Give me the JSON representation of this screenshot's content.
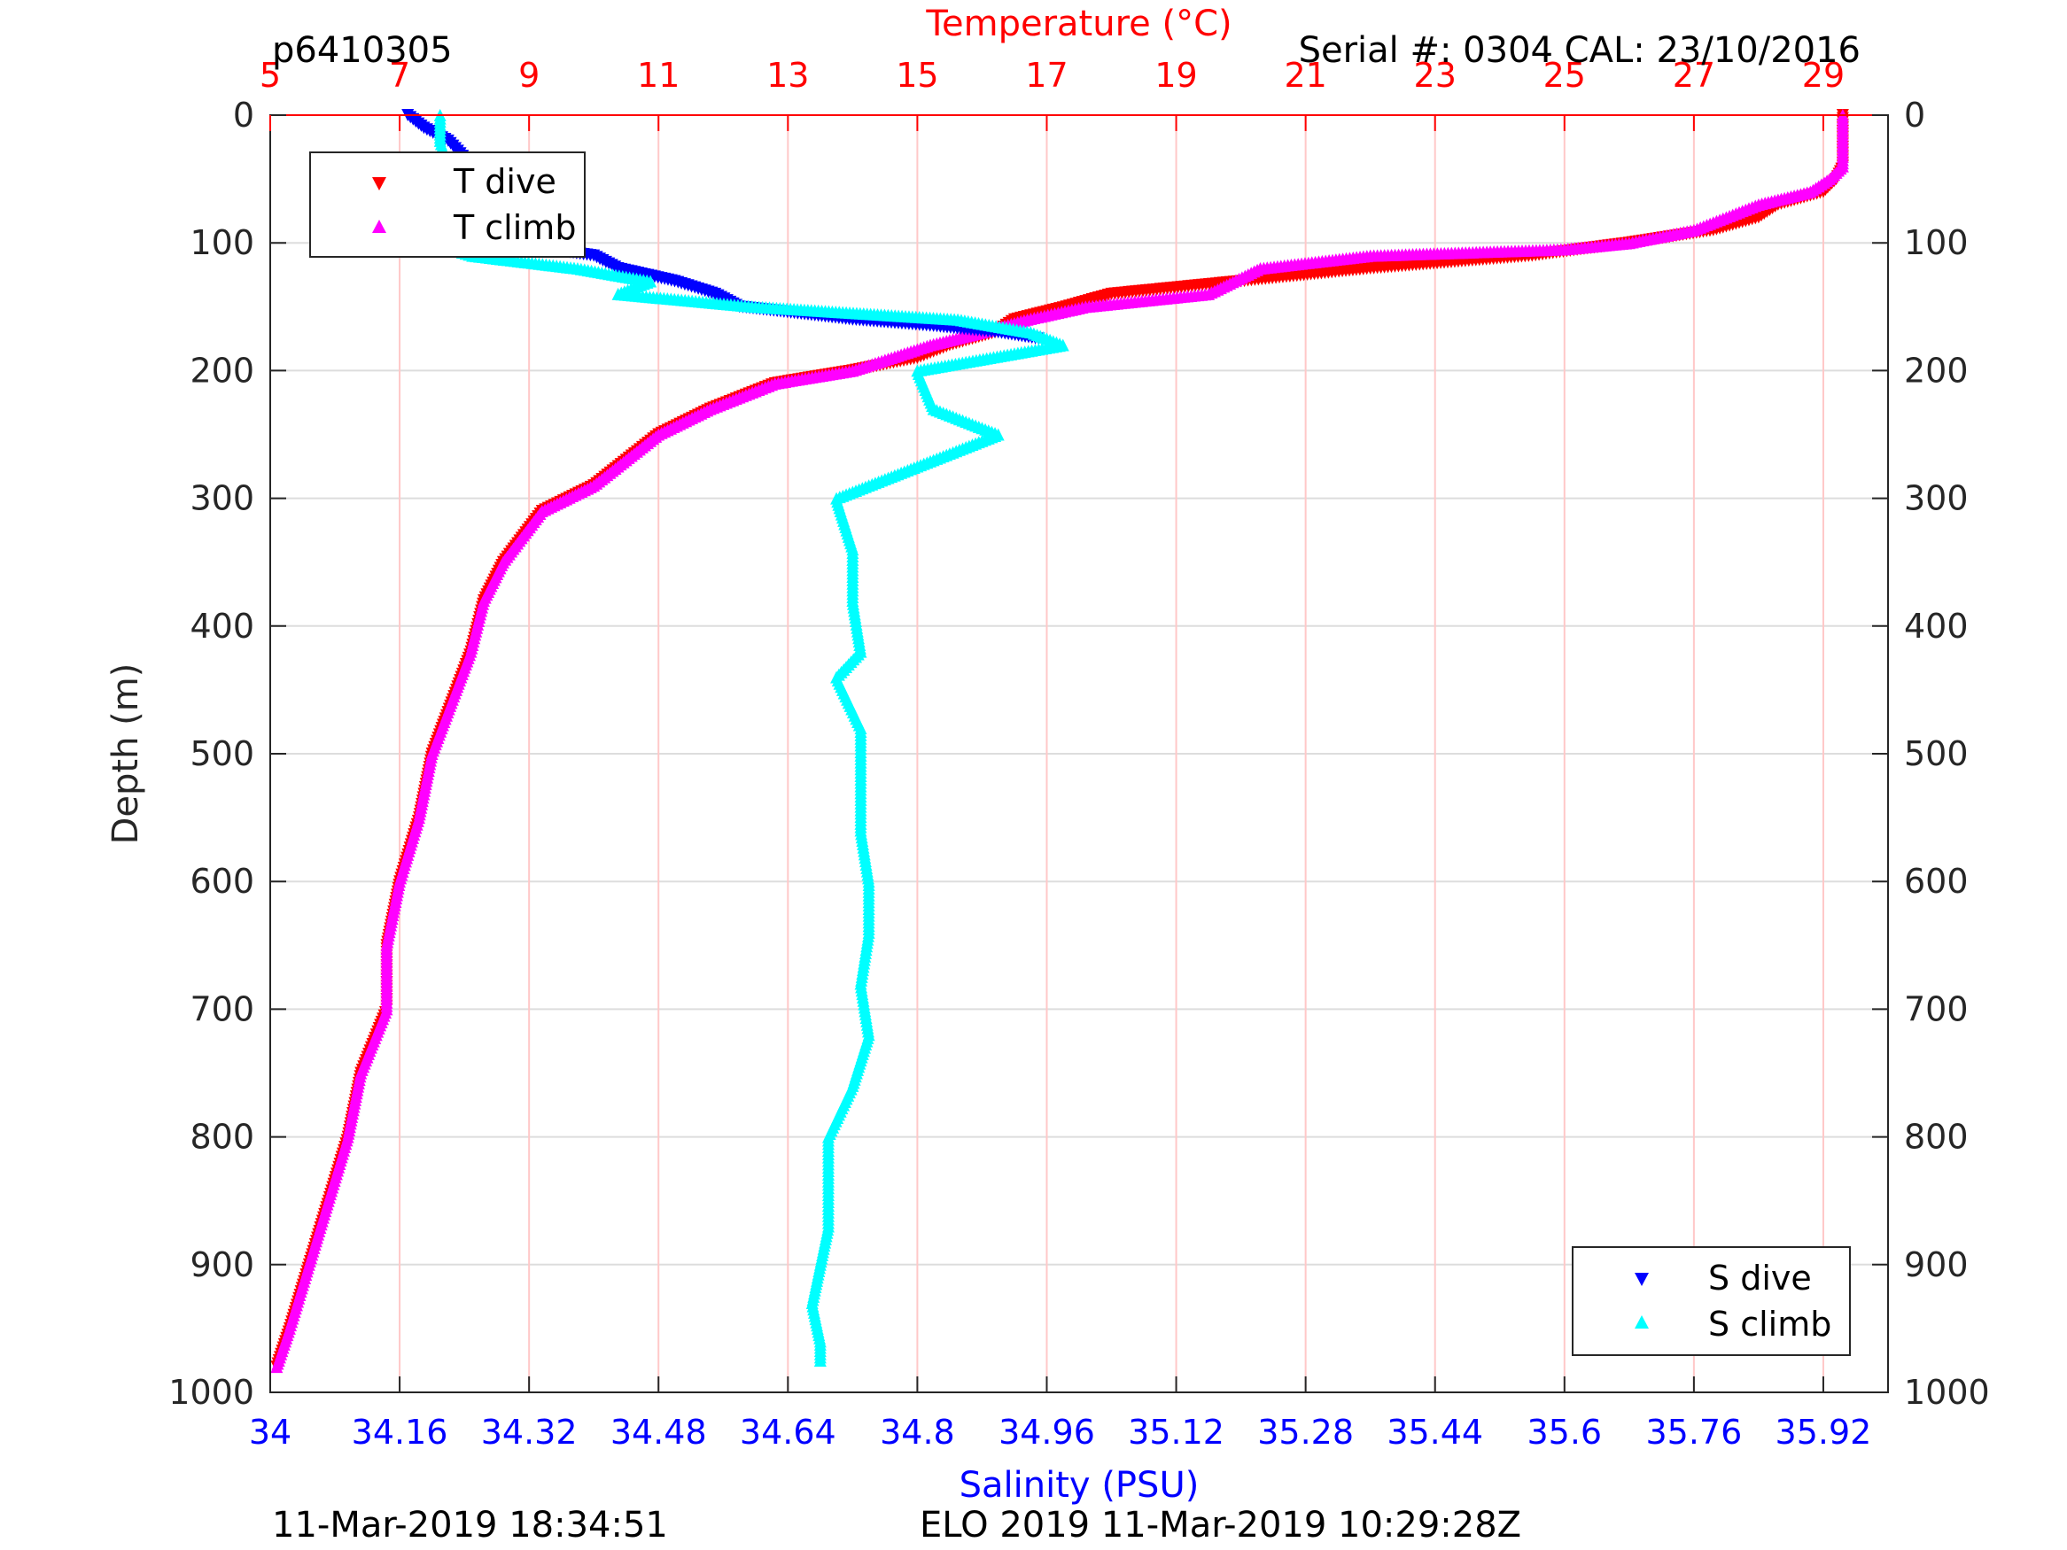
{
  "header": {
    "profile_id": "p6410305",
    "serial": "Serial #: 0304  CAL: 23/10/2016"
  },
  "footer": {
    "left": "11-Mar-2019 18:34:51",
    "right": "ELO 2019 11-Mar-2019 10:29:28Z"
  },
  "colors": {
    "t_dive": "#ff0000",
    "t_climb": "#ff00ff",
    "s_dive": "#0000ff",
    "s_climb": "#00ffff",
    "grid": "#dddddd",
    "temp_grid": "#ffc8c8",
    "salinity_axis": "#0000ff",
    "temperature_axis": "#ff0000"
  },
  "chart_data": {
    "type": "scatter",
    "title": "",
    "ylabel": "Depth (m)",
    "xlabel_bottom": "Salinity (PSU)",
    "xlabel_top": "Temperature (°C)",
    "ylim": [
      0,
      1000
    ],
    "y_reversed": true,
    "salinity_lim": [
      34,
      36.0
    ],
    "temperature_lim": [
      5,
      30
    ],
    "y_ticks": [
      "0",
      "100",
      "200",
      "300",
      "400",
      "500",
      "600",
      "700",
      "800",
      "900",
      "1000"
    ],
    "salinity_ticks": [
      "34",
      "34.16",
      "34.32",
      "34.48",
      "34.64",
      "34.8",
      "34.96",
      "35.12",
      "35.28",
      "35.44",
      "35.6",
      "35.76",
      "35.92"
    ],
    "temperature_ticks": [
      "5",
      "7",
      "9",
      "11",
      "13",
      "15",
      "17",
      "19",
      "21",
      "23",
      "25",
      "27",
      "29"
    ],
    "grid": true,
    "legends": [
      {
        "placement": "top-left",
        "entries": [
          "T dive",
          "T climb"
        ]
      },
      {
        "placement": "bottom-right",
        "entries": [
          "S dive",
          "S climb"
        ]
      }
    ],
    "series": [
      {
        "name": "T dive",
        "axis": "temperature",
        "marker": "triangle-down",
        "points": [
          [
            29.3,
            0
          ],
          [
            29.3,
            20
          ],
          [
            29.3,
            40
          ],
          [
            29.2,
            50
          ],
          [
            29,
            60
          ],
          [
            28.3,
            70
          ],
          [
            28,
            80
          ],
          [
            27.3,
            90
          ],
          [
            26,
            100
          ],
          [
            24.5,
            110
          ],
          [
            22,
            120
          ],
          [
            20,
            130
          ],
          [
            18,
            140
          ],
          [
            17.3,
            150
          ],
          [
            16.5,
            160
          ],
          [
            16.2,
            170
          ],
          [
            15.5,
            180
          ],
          [
            15,
            190
          ],
          [
            14,
            200
          ],
          [
            12.8,
            210
          ],
          [
            11.8,
            230
          ],
          [
            11,
            250
          ],
          [
            10.5,
            270
          ],
          [
            10,
            290
          ],
          [
            9.2,
            310
          ],
          [
            8.6,
            350
          ],
          [
            8.3,
            380
          ],
          [
            8.1,
            420
          ],
          [
            7.8,
            460
          ],
          [
            7.5,
            500
          ],
          [
            7.3,
            550
          ],
          [
            7,
            600
          ],
          [
            6.8,
            650
          ],
          [
            6.8,
            700
          ],
          [
            6.4,
            750
          ],
          [
            6.2,
            800
          ],
          [
            5.9,
            850
          ],
          [
            5.6,
            900
          ],
          [
            5.3,
            950
          ],
          [
            5.1,
            980
          ]
        ]
      },
      {
        "name": "T climb",
        "axis": "temperature",
        "marker": "triangle-up",
        "points": [
          [
            29.3,
            0
          ],
          [
            29.3,
            20
          ],
          [
            29.3,
            40
          ],
          [
            29.1,
            50
          ],
          [
            28.8,
            60
          ],
          [
            28,
            70
          ],
          [
            27.5,
            80
          ],
          [
            27,
            90
          ],
          [
            26,
            100
          ],
          [
            25,
            105
          ],
          [
            22,
            110
          ],
          [
            20.3,
            120
          ],
          [
            19.5,
            140
          ],
          [
            17.6,
            150
          ],
          [
            16.7,
            160
          ],
          [
            16,
            170
          ],
          [
            15.2,
            180
          ],
          [
            14.6,
            190
          ],
          [
            14,
            200
          ],
          [
            12.8,
            210
          ],
          [
            11.8,
            230
          ],
          [
            11,
            250
          ],
          [
            10.5,
            270
          ],
          [
            10,
            290
          ],
          [
            9.2,
            310
          ],
          [
            8.6,
            350
          ],
          [
            8.3,
            380
          ],
          [
            8.1,
            420
          ],
          [
            7.8,
            460
          ],
          [
            7.5,
            500
          ],
          [
            7.3,
            550
          ],
          [
            7,
            600
          ],
          [
            6.8,
            650
          ],
          [
            6.8,
            700
          ],
          [
            6.4,
            750
          ],
          [
            6.2,
            800
          ],
          [
            5.9,
            850
          ],
          [
            5.6,
            900
          ],
          [
            5.3,
            950
          ],
          [
            5.1,
            980
          ]
        ]
      },
      {
        "name": "S dive",
        "axis": "salinity",
        "marker": "triangle-down",
        "points": [
          [
            34.17,
            0
          ],
          [
            34.19,
            10
          ],
          [
            34.22,
            20
          ],
          [
            34.25,
            40
          ],
          [
            34.28,
            60
          ],
          [
            34.33,
            80
          ],
          [
            34.29,
            100
          ],
          [
            34.4,
            110
          ],
          [
            34.43,
            120
          ],
          [
            34.5,
            130
          ],
          [
            34.55,
            140
          ],
          [
            34.58,
            150
          ],
          [
            34.72,
            160
          ],
          [
            34.82,
            165
          ],
          [
            34.9,
            170
          ],
          [
            34.95,
            175
          ]
        ]
      },
      {
        "name": "S climb",
        "axis": "salinity",
        "marker": "triangle-up",
        "points": [
          [
            34.21,
            0
          ],
          [
            34.21,
            20
          ],
          [
            34.22,
            40
          ],
          [
            34.26,
            60
          ],
          [
            34.32,
            75
          ],
          [
            34.12,
            90
          ],
          [
            34.2,
            100
          ],
          [
            34.25,
            110
          ],
          [
            34.38,
            120
          ],
          [
            34.47,
            130
          ],
          [
            34.43,
            140
          ],
          [
            34.6,
            150
          ],
          [
            34.85,
            160
          ],
          [
            34.94,
            170
          ],
          [
            34.98,
            180
          ],
          [
            34.8,
            200
          ],
          [
            34.82,
            230
          ],
          [
            34.9,
            250
          ],
          [
            34.82,
            270
          ],
          [
            34.74,
            290
          ],
          [
            34.7,
            300
          ],
          [
            34.72,
            340
          ],
          [
            34.72,
            380
          ],
          [
            34.73,
            420
          ],
          [
            34.7,
            440
          ],
          [
            34.73,
            480
          ],
          [
            34.73,
            520
          ],
          [
            34.73,
            560
          ],
          [
            34.74,
            600
          ],
          [
            34.74,
            640
          ],
          [
            34.73,
            680
          ],
          [
            34.74,
            720
          ],
          [
            34.72,
            760
          ],
          [
            34.69,
            800
          ],
          [
            34.69,
            840
          ],
          [
            34.69,
            870
          ],
          [
            34.68,
            900
          ],
          [
            34.67,
            930
          ],
          [
            34.68,
            960
          ],
          [
            34.68,
            975
          ]
        ]
      }
    ]
  }
}
